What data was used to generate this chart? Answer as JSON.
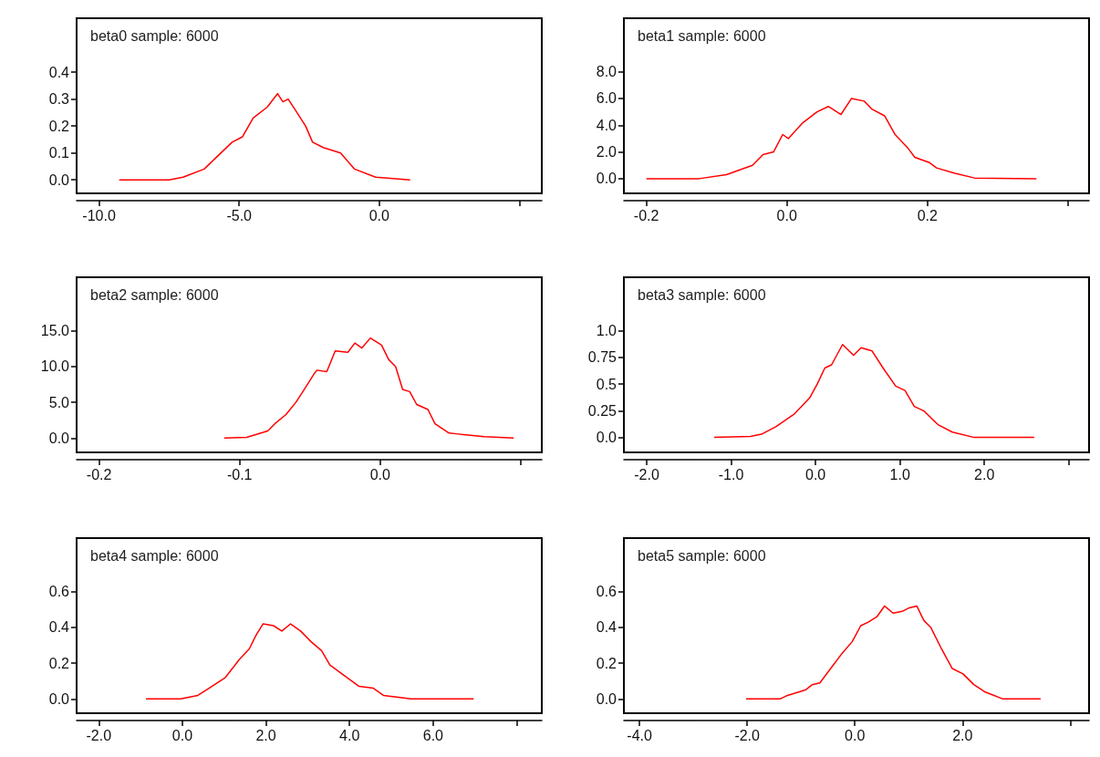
{
  "chart_data": [
    {
      "type": "line",
      "title": "beta0 sample: 6000",
      "color": "#ff0000",
      "grid": false,
      "x": [
        -9.28,
        -7.5,
        -7.0,
        -6.25,
        -5.75,
        -5.25,
        -4.88,
        -4.5,
        -4.0,
        -3.63,
        -3.44,
        -3.25,
        -3.0,
        -2.63,
        -2.38,
        -2.0,
        -1.38,
        -0.88,
        -0.13,
        1.1
      ],
      "values": [
        0,
        0,
        0.01,
        0.04,
        0.09,
        0.14,
        0.16,
        0.23,
        0.27,
        0.32,
        0.29,
        0.3,
        0.26,
        0.2,
        0.14,
        0.12,
        0.1,
        0.04,
        0.01,
        0
      ],
      "xlim": [
        -10.8,
        5.8
      ],
      "xticks": [
        {
          "value": -10,
          "label": "-10.0"
        },
        {
          "value": -5,
          "label": "-5.0"
        },
        {
          "value": 0,
          "label": "0.0"
        },
        {
          "value": 5,
          "label": null
        }
      ],
      "ylim": [
        -0.05,
        0.6
      ],
      "yticks": [
        {
          "value": 0,
          "label": "0.0"
        },
        0.1,
        0.2,
        0.3,
        0.4
      ]
    },
    {
      "type": "line",
      "title": "beta1 sample: 6000",
      "color": "#ff0000",
      "grid": false,
      "x": [
        -0.2,
        -0.125,
        -0.086,
        -0.049,
        -0.034,
        -0.019,
        -0.006,
        0.002,
        0.023,
        0.043,
        0.059,
        0.077,
        0.092,
        0.11,
        0.121,
        0.139,
        0.154,
        0.172,
        0.182,
        0.203,
        0.213,
        0.239,
        0.267,
        0.355
      ],
      "values": [
        0,
        0,
        0.3,
        1.0,
        1.8,
        2.0,
        3.3,
        3.0,
        4.2,
        5.0,
        5.4,
        4.8,
        6.0,
        5.8,
        5.2,
        4.7,
        3.3,
        2.3,
        1.6,
        1.2,
        0.8,
        0.4,
        0.05,
        0
      ],
      "xlim": [
        -0.232,
        0.43
      ],
      "xticks": [
        {
          "value": -0.2,
          "label": "-0.2"
        },
        {
          "value": 0,
          "label": "0.0"
        },
        {
          "value": 0.2,
          "label": "0.2"
        },
        {
          "value": 0.4,
          "label": null
        }
      ],
      "ylim": [
        -1.1,
        12
      ],
      "yticks": [
        {
          "value": 0,
          "label": "0.0"
        },
        {
          "value": 2,
          "label": "2.0"
        },
        {
          "value": 4,
          "label": "4.0"
        },
        {
          "value": 6,
          "label": "6.0"
        },
        {
          "value": 8,
          "label": "8.0"
        }
      ]
    },
    {
      "type": "line",
      "title": "beta2 sample: 6000",
      "color": "#ff0000",
      "grid": false,
      "x": [
        -0.111,
        -0.095,
        -0.08,
        -0.075,
        -0.067,
        -0.06,
        -0.055,
        -0.047,
        -0.045,
        -0.038,
        -0.032,
        -0.023,
        -0.018,
        -0.013,
        -0.007,
        0.001,
        0.006,
        0.011,
        0.016,
        0.021,
        0.026,
        0.034,
        0.039,
        0.049,
        0.054,
        0.074,
        0.095
      ],
      "values": [
        0,
        0.1,
        1.0,
        2.0,
        3.3,
        5.0,
        6.5,
        9.0,
        9.5,
        9.3,
        12.2,
        12.0,
        13.3,
        12.6,
        14.0,
        13.0,
        11.0,
        10.0,
        6.8,
        6.5,
        4.7,
        4.0,
        2.0,
        0.7,
        0.6,
        0.2,
        0
      ],
      "xlim": [
        -0.216,
        0.115
      ],
      "xticks": [
        {
          "value": -0.2,
          "label": "-0.2"
        },
        {
          "value": -0.1,
          "label": "-0.1"
        },
        {
          "value": 0,
          "label": "0.0"
        },
        {
          "value": 0.1,
          "label": null
        }
      ],
      "ylim": [
        -2,
        22.5
      ],
      "yticks": [
        {
          "value": 0,
          "label": "0.0"
        },
        {
          "value": 5,
          "label": "5.0"
        },
        {
          "value": 10,
          "label": "10.0"
        },
        {
          "value": 15,
          "label": "15.0"
        }
      ]
    },
    {
      "type": "line",
      "title": "beta3 sample: 6000",
      "color": "#ff0000",
      "grid": false,
      "x": [
        -1.2,
        -0.77,
        -0.64,
        -0.47,
        -0.25,
        -0.07,
        0.02,
        0.11,
        0.19,
        0.32,
        0.45,
        0.54,
        0.67,
        0.8,
        0.95,
        1.06,
        1.17,
        1.28,
        1.45,
        1.62,
        1.88,
        2.59
      ],
      "values": [
        0,
        0.01,
        0.03,
        0.1,
        0.22,
        0.37,
        0.5,
        0.65,
        0.68,
        0.87,
        0.77,
        0.84,
        0.81,
        0.65,
        0.48,
        0.44,
        0.29,
        0.25,
        0.12,
        0.05,
        0,
        0
      ],
      "xlim": [
        -2.27,
        3.24
      ],
      "xticks": [
        {
          "value": -2,
          "label": "-2.0"
        },
        {
          "value": -1,
          "label": "-1.0"
        },
        {
          "value": 0,
          "label": "0.0"
        },
        {
          "value": 1,
          "label": "1.0"
        },
        {
          "value": 2,
          "label": "2.0"
        },
        {
          "value": 3,
          "label": null
        }
      ],
      "ylim": [
        -0.14,
        1.5
      ],
      "yticks": [
        {
          "value": 0,
          "label": "0.0"
        },
        0.25,
        0.5,
        0.75,
        {
          "value": 1,
          "label": "1.0"
        }
      ]
    },
    {
      "type": "line",
      "title": "beta4 sample: 6000",
      "color": "#ff0000",
      "grid": false,
      "x": [
        -0.87,
        -0.04,
        0.37,
        0.57,
        1.03,
        1.36,
        1.6,
        1.77,
        1.93,
        2.18,
        2.38,
        2.59,
        2.83,
        3.08,
        3.33,
        3.53,
        3.82,
        4.23,
        4.57,
        4.81,
        5.47,
        6.97
      ],
      "values": [
        0,
        0,
        0.02,
        0.05,
        0.12,
        0.22,
        0.28,
        0.36,
        0.42,
        0.41,
        0.38,
        0.42,
        0.38,
        0.32,
        0.27,
        0.19,
        0.14,
        0.07,
        0.06,
        0.02,
        0,
        0
      ],
      "xlim": [
        -2.53,
        8.6
      ],
      "xticks": [
        {
          "value": -2,
          "label": "-2.0"
        },
        {
          "value": 0,
          "label": "0.0"
        },
        {
          "value": 2,
          "label": "2.0"
        },
        {
          "value": 4,
          "label": "4.0"
        },
        {
          "value": 6,
          "label": "6.0"
        },
        {
          "value": 8,
          "label": null
        }
      ],
      "ylim": [
        -0.08,
        0.9
      ],
      "yticks": [
        {
          "value": 0,
          "label": "0.0"
        },
        0.2,
        0.4,
        0.6
      ]
    },
    {
      "type": "line",
      "title": "beta5 sample: 6000",
      "color": "#ff0000",
      "grid": false,
      "x": [
        -2.02,
        -1.39,
        -1.25,
        -0.92,
        -0.79,
        -0.65,
        -0.45,
        -0.25,
        -0.05,
        0.11,
        0.25,
        0.41,
        0.55,
        0.71,
        0.88,
        1.01,
        1.15,
        1.28,
        1.41,
        1.61,
        1.81,
        2.01,
        2.21,
        2.41,
        2.75,
        3.45
      ],
      "values": [
        0,
        0,
        0.02,
        0.05,
        0.08,
        0.09,
        0.17,
        0.25,
        0.32,
        0.41,
        0.43,
        0.46,
        0.52,
        0.48,
        0.49,
        0.51,
        0.52,
        0.44,
        0.4,
        0.28,
        0.17,
        0.14,
        0.08,
        0.04,
        0,
        0
      ],
      "xlim": [
        -4.29,
        4.35
      ],
      "xticks": [
        {
          "value": -4,
          "label": "-4.0"
        },
        {
          "value": -2,
          "label": "-2.0"
        },
        {
          "value": 0,
          "label": "0.0"
        },
        {
          "value": 2,
          "label": "2.0"
        },
        {
          "value": 4,
          "label": null
        }
      ],
      "ylim": [
        -0.08,
        0.9
      ],
      "yticks": [
        {
          "value": 0,
          "label": "0.0"
        },
        0.2,
        0.4,
        0.6
      ]
    }
  ]
}
